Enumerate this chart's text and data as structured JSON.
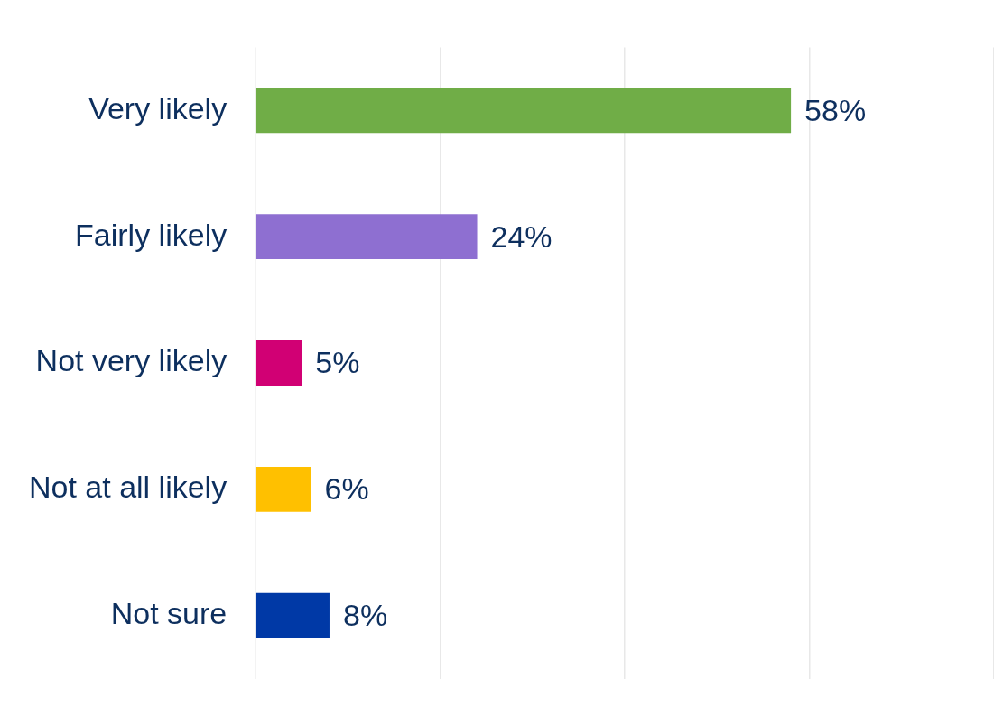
{
  "chart_data": {
    "type": "bar",
    "orientation": "horizontal",
    "categories": [
      "Very likely",
      "Fairly likely",
      "Not very likely",
      "Not at all likely",
      "Not sure"
    ],
    "values": [
      58,
      24,
      5,
      6,
      8
    ],
    "colors": [
      "#70ad47",
      "#8e6fd1",
      "#d10074",
      "#ffc000",
      "#0039a6"
    ],
    "value_labels": [
      "58%",
      "24%",
      "5%",
      "6%",
      "8%"
    ],
    "xlim": [
      0,
      80
    ],
    "xticks": [
      {
        "value": 0,
        "label": null
      },
      {
        "value": 20,
        "label": null
      },
      {
        "value": 40,
        "label": null
      },
      {
        "value": 60,
        "label": null
      },
      {
        "value": 80,
        "label": null
      }
    ],
    "grid": "x",
    "tick_labels": "y",
    "legend": false
  }
}
